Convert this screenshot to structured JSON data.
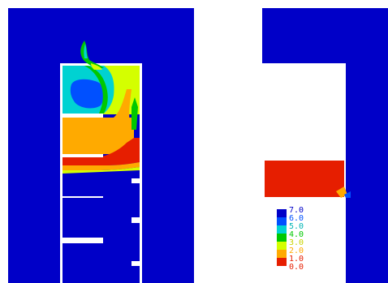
{
  "colors": {
    "level_0": "#0000c8",
    "level_1": "#0050ff",
    "level_2": "#00d2d2",
    "level_3": "#00c800",
    "level_4": "#d4ff00",
    "level_5": "#ffaa00",
    "level_6": "#e61e00",
    "background": "#ffffff"
  },
  "legend": {
    "labels": [
      "7.0",
      "6.0",
      "5.0",
      "4.0",
      "3.0",
      "2.0",
      "1.0",
      "0.0"
    ],
    "colors": [
      "#0000c8",
      "#0050ff",
      "#00d2d2",
      "#00c800",
      "#d4ff00",
      "#ffaa00",
      "#e61e00"
    ],
    "label_colors": [
      "#0000c8",
      "#0050ff",
      "#00b4b4",
      "#00c800",
      "#c8d400",
      "#ffaa00",
      "#e61e00",
      "#e61e00"
    ]
  }
}
